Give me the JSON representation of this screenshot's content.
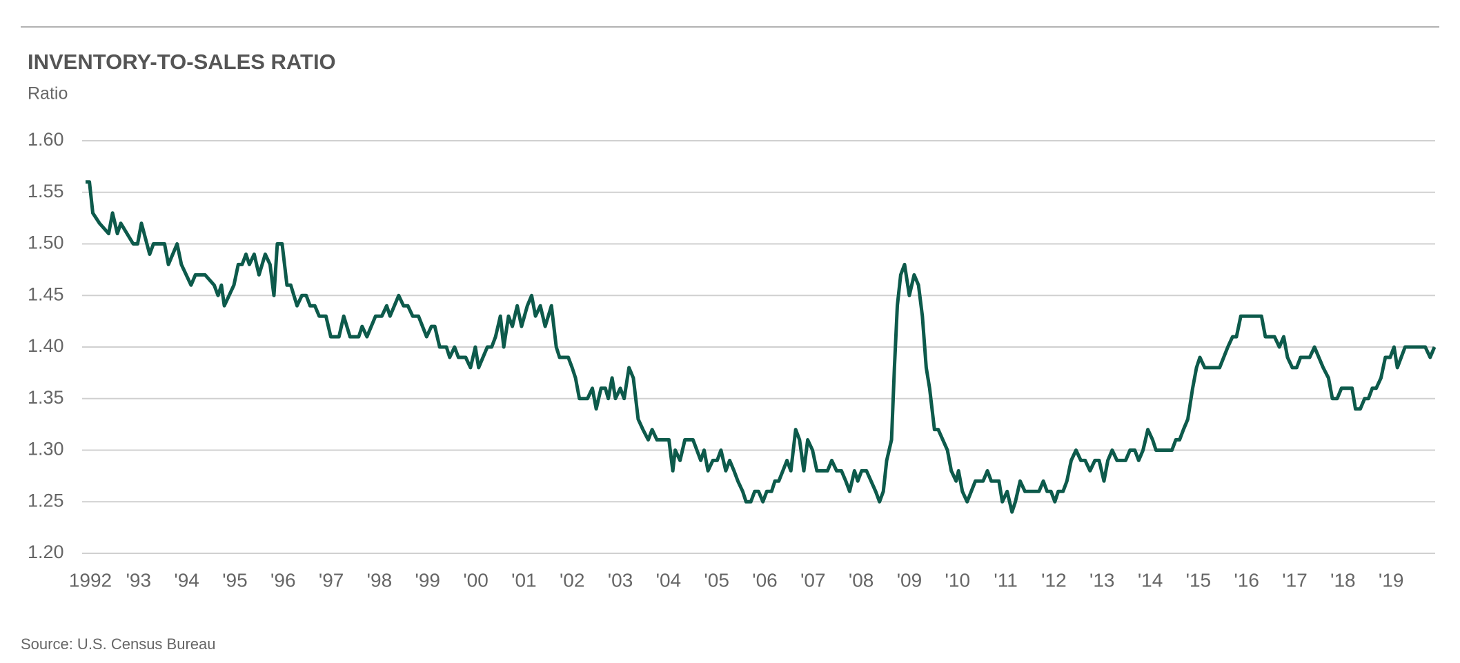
{
  "chart_data": {
    "type": "line",
    "title": "INVENTORY-TO-SALES RATIO",
    "y_label": "Ratio",
    "source": "Source: U.S. Census Bureau",
    "color": "#0d5a4b",
    "grid": true,
    "xlim": [
      1992,
      2020
    ],
    "ylim": [
      1.2,
      1.6
    ],
    "yticks": [
      {
        "value": 1.2,
        "label": "1.20"
      },
      {
        "value": 1.25,
        "label": "1.25"
      },
      {
        "value": 1.3,
        "label": "1.30"
      },
      {
        "value": 1.35,
        "label": "1.35"
      },
      {
        "value": 1.4,
        "label": "1.40"
      },
      {
        "value": 1.45,
        "label": "1.45"
      },
      {
        "value": 1.5,
        "label": "1.50"
      },
      {
        "value": 1.55,
        "label": "1.55"
      },
      {
        "value": 1.6,
        "label": "1.60"
      }
    ],
    "xticks": [
      {
        "value": 1992,
        "label": "1992"
      },
      {
        "value": 1993,
        "label": "'93"
      },
      {
        "value": 1994,
        "label": "'94"
      },
      {
        "value": 1995,
        "label": "'95"
      },
      {
        "value": 1996,
        "label": "'96"
      },
      {
        "value": 1997,
        "label": "'97"
      },
      {
        "value": 1998,
        "label": "'98"
      },
      {
        "value": 1999,
        "label": "'99"
      },
      {
        "value": 2000,
        "label": "'00"
      },
      {
        "value": 2001,
        "label": "'01"
      },
      {
        "value": 2002,
        "label": "'02"
      },
      {
        "value": 2003,
        "label": "'03"
      },
      {
        "value": 2004,
        "label": "'04"
      },
      {
        "value": 2005,
        "label": "'05"
      },
      {
        "value": 2006,
        "label": "'06"
      },
      {
        "value": 2007,
        "label": "'07"
      },
      {
        "value": 2008,
        "label": "'08"
      },
      {
        "value": 2009,
        "label": "'09"
      },
      {
        "value": 2010,
        "label": "'10"
      },
      {
        "value": 2011,
        "label": "'11"
      },
      {
        "value": 2012,
        "label": "'12"
      },
      {
        "value": 2013,
        "label": "'13"
      },
      {
        "value": 2014,
        "label": "'14"
      },
      {
        "value": 2015,
        "label": "'15"
      },
      {
        "value": 2016,
        "label": "'16"
      },
      {
        "value": 2017,
        "label": "'17"
      },
      {
        "value": 2018,
        "label": "'18"
      },
      {
        "value": 2019,
        "label": "'19"
      }
    ],
    "x": [
      1992.0,
      1992.08,
      1992.15,
      1992.29,
      1992.48,
      1992.56,
      1992.66,
      1992.73,
      1992.99,
      1993.08,
      1993.16,
      1993.33,
      1993.41,
      1993.64,
      1993.72,
      1993.9,
      1993.99,
      1994.19,
      1994.28,
      1994.48,
      1994.67,
      1994.75,
      1994.82,
      1994.88,
      1995.08,
      1995.17,
      1995.25,
      1995.33,
      1995.4,
      1995.5,
      1995.6,
      1995.73,
      1995.83,
      1995.91,
      1995.98,
      1996.08,
      1996.18,
      1996.26,
      1996.39,
      1996.49,
      1996.58,
      1996.66,
      1996.76,
      1996.85,
      1996.99,
      1997.09,
      1997.26,
      1997.36,
      1997.49,
      1997.67,
      1997.74,
      1997.84,
      1998.02,
      1998.15,
      1998.25,
      1998.32,
      1998.5,
      1998.6,
      1998.69,
      1998.79,
      1998.91,
      1999.08,
      1999.18,
      1999.25,
      1999.35,
      1999.49,
      1999.56,
      1999.66,
      1999.74,
      1999.89,
      1999.99,
      2000.09,
      2000.16,
      2000.34,
      2000.43,
      2000.51,
      2000.61,
      2000.68,
      2000.78,
      2000.86,
      2000.96,
      2001.05,
      2001.17,
      2001.26,
      2001.34,
      2001.44,
      2001.54,
      2001.67,
      2001.77,
      2001.84,
      2002.02,
      2002.1,
      2002.17,
      2002.25,
      2002.42,
      2002.52,
      2002.6,
      2002.7,
      2002.79,
      2002.85,
      2002.93,
      2003.0,
      2003.1,
      2003.18,
      2003.28,
      2003.37,
      2003.47,
      2003.57,
      2003.68,
      2003.76,
      2003.86,
      2004.11,
      2004.19,
      2004.24,
      2004.34,
      2004.44,
      2004.61,
      2004.77,
      2004.84,
      2004.92,
      2005.02,
      2005.11,
      2005.19,
      2005.29,
      2005.37,
      2005.46,
      2005.54,
      2005.64,
      2005.71,
      2005.81,
      2005.89,
      2005.97,
      2006.06,
      2006.14,
      2006.24,
      2006.31,
      2006.39,
      2006.56,
      2006.64,
      2006.74,
      2006.82,
      2006.91,
      2006.99,
      2007.09,
      2007.18,
      2007.4,
      2007.49,
      2007.59,
      2007.69,
      2007.78,
      2007.86,
      2007.96,
      2008.03,
      2008.11,
      2008.21,
      2008.4,
      2008.48,
      2008.56,
      2008.63,
      2008.73,
      2008.79,
      2008.85,
      2008.92,
      2009.0,
      2009.1,
      2009.2,
      2009.29,
      2009.37,
      2009.45,
      2009.52,
      2009.62,
      2009.7,
      2009.89,
      2009.97,
      2010.07,
      2010.12,
      2010.2,
      2010.3,
      2010.47,
      2010.63,
      2010.72,
      2010.8,
      2010.96,
      2011.03,
      2011.13,
      2011.23,
      2011.3,
      2011.4,
      2011.5,
      2011.79,
      2011.88,
      2011.96,
      2012.04,
      2012.12,
      2012.19,
      2012.29,
      2012.37,
      2012.46,
      2012.56,
      2012.66,
      2012.75,
      2012.85,
      2012.95,
      2013.04,
      2013.14,
      2013.22,
      2013.31,
      2013.41,
      2013.59,
      2013.68,
      2013.78,
      2013.86,
      2013.95,
      2014.05,
      2014.15,
      2014.22,
      2014.55,
      2014.63,
      2014.71,
      2014.79,
      2014.88,
      2014.98,
      2015.06,
      2015.13,
      2015.23,
      2015.54,
      2015.71,
      2015.81,
      2015.89,
      2015.98,
      2016.41,
      2016.49,
      2016.68,
      2016.78,
      2016.87,
      2016.95,
      2017.05,
      2017.14,
      2017.22,
      2017.41,
      2017.51,
      2017.69,
      2017.8,
      2017.88,
      2017.98,
      2018.07,
      2018.29,
      2018.36,
      2018.46,
      2018.55,
      2018.63,
      2018.71,
      2018.79,
      2018.89,
      2018.98,
      2019.08,
      2019.16,
      2019.23,
      2019.31,
      2019.39,
      2019.81,
      2019.91,
      2020.0
    ],
    "values": [
      1.56,
      1.56,
      1.53,
      1.52,
      1.51,
      1.53,
      1.51,
      1.52,
      1.5,
      1.5,
      1.52,
      1.49,
      1.5,
      1.5,
      1.48,
      1.5,
      1.48,
      1.46,
      1.47,
      1.47,
      1.46,
      1.45,
      1.46,
      1.44,
      1.46,
      1.48,
      1.48,
      1.49,
      1.48,
      1.49,
      1.47,
      1.49,
      1.48,
      1.45,
      1.5,
      1.5,
      1.46,
      1.46,
      1.44,
      1.45,
      1.45,
      1.44,
      1.44,
      1.43,
      1.43,
      1.41,
      1.41,
      1.43,
      1.41,
      1.41,
      1.42,
      1.41,
      1.43,
      1.43,
      1.44,
      1.43,
      1.45,
      1.44,
      1.44,
      1.43,
      1.43,
      1.41,
      1.42,
      1.42,
      1.4,
      1.4,
      1.39,
      1.4,
      1.39,
      1.39,
      1.38,
      1.4,
      1.38,
      1.4,
      1.4,
      1.41,
      1.43,
      1.4,
      1.43,
      1.42,
      1.44,
      1.42,
      1.44,
      1.45,
      1.43,
      1.44,
      1.42,
      1.44,
      1.4,
      1.39,
      1.39,
      1.38,
      1.37,
      1.35,
      1.35,
      1.36,
      1.34,
      1.36,
      1.36,
      1.35,
      1.37,
      1.35,
      1.36,
      1.35,
      1.38,
      1.37,
      1.33,
      1.32,
      1.31,
      1.32,
      1.31,
      1.31,
      1.28,
      1.3,
      1.29,
      1.31,
      1.31,
      1.29,
      1.3,
      1.28,
      1.29,
      1.29,
      1.3,
      1.28,
      1.29,
      1.28,
      1.27,
      1.26,
      1.25,
      1.25,
      1.26,
      1.26,
      1.25,
      1.26,
      1.26,
      1.27,
      1.27,
      1.29,
      1.28,
      1.32,
      1.31,
      1.28,
      1.31,
      1.3,
      1.28,
      1.28,
      1.29,
      1.28,
      1.28,
      1.27,
      1.26,
      1.28,
      1.27,
      1.28,
      1.28,
      1.26,
      1.25,
      1.26,
      1.29,
      1.31,
      1.38,
      1.44,
      1.47,
      1.48,
      1.45,
      1.47,
      1.46,
      1.43,
      1.38,
      1.36,
      1.32,
      1.32,
      1.3,
      1.28,
      1.27,
      1.28,
      1.26,
      1.25,
      1.27,
      1.27,
      1.28,
      1.27,
      1.27,
      1.25,
      1.26,
      1.24,
      1.25,
      1.27,
      1.26,
      1.26,
      1.27,
      1.26,
      1.26,
      1.25,
      1.26,
      1.26,
      1.27,
      1.29,
      1.3,
      1.29,
      1.29,
      1.28,
      1.29,
      1.29,
      1.27,
      1.29,
      1.3,
      1.29,
      1.29,
      1.3,
      1.3,
      1.29,
      1.3,
      1.32,
      1.31,
      1.3,
      1.3,
      1.31,
      1.31,
      1.32,
      1.33,
      1.36,
      1.38,
      1.39,
      1.38,
      1.38,
      1.4,
      1.41,
      1.41,
      1.43,
      1.43,
      1.41,
      1.41,
      1.4,
      1.41,
      1.39,
      1.38,
      1.38,
      1.39,
      1.39,
      1.4,
      1.38,
      1.37,
      1.35,
      1.35,
      1.36,
      1.36,
      1.34,
      1.34,
      1.35,
      1.35,
      1.36,
      1.36,
      1.37,
      1.39,
      1.39,
      1.4,
      1.38,
      1.39,
      1.4,
      1.4,
      1.39,
      1.4
    ]
  }
}
